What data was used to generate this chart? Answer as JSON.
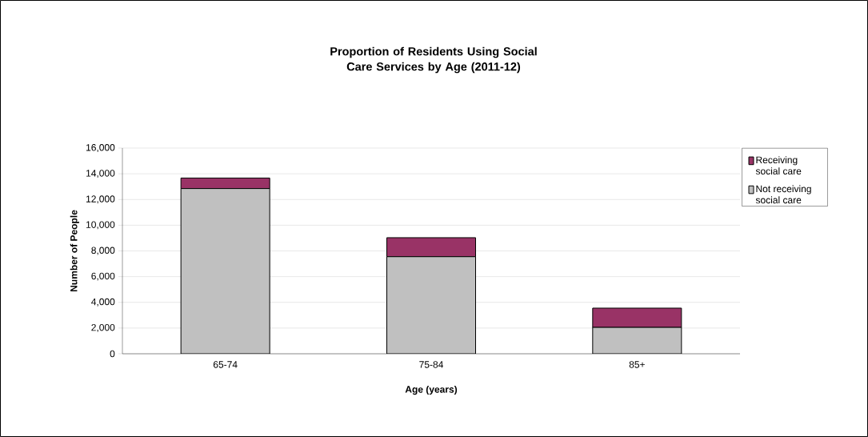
{
  "chart_data": {
    "type": "bar",
    "stacked": true,
    "title": "Proportion of Residents Using Social Care Services by Age (2011-12)",
    "xlabel": "Age (years)",
    "ylabel": "Number of People",
    "categories": [
      "65-74",
      "75-84",
      "85+"
    ],
    "series": [
      {
        "name": "Not receiving social care",
        "color": "#c0c0c0",
        "values": [
          12850,
          7550,
          2050
        ]
      },
      {
        "name": "Receiving social care",
        "color": "#993366",
        "values": [
          820,
          1480,
          1500
        ]
      }
    ],
    "ylim": [
      0,
      16000
    ],
    "yticks": [
      {
        "value": 0,
        "label": "0"
      },
      {
        "value": 2000,
        "label": "2,000"
      },
      {
        "value": 4000,
        "label": "4,000"
      },
      {
        "value": 6000,
        "label": "6,000"
      },
      {
        "value": 8000,
        "label": "8,000"
      },
      {
        "value": 10000,
        "label": "10,000"
      },
      {
        "value": 12000,
        "label": "12,000"
      },
      {
        "value": 14000,
        "label": "14,000"
      },
      {
        "value": 16000,
        "label": "16,000"
      }
    ],
    "grid": "y",
    "legend": "right"
  }
}
